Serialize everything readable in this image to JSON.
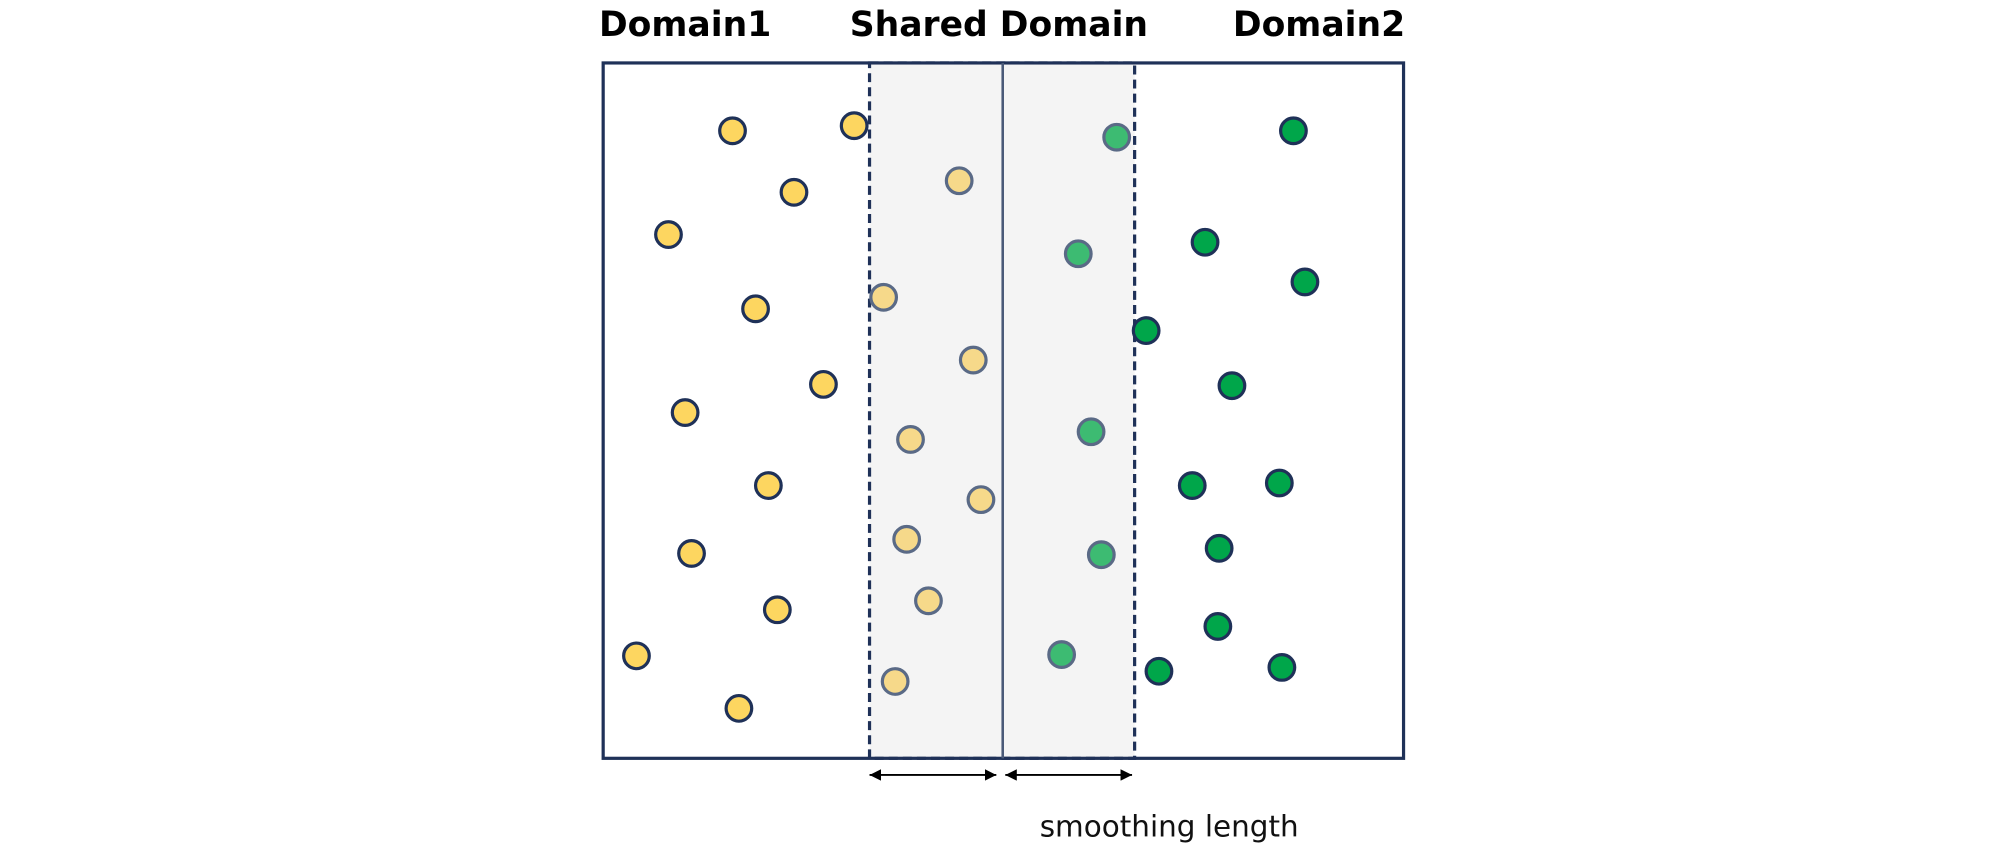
{
  "labels": {
    "domain1": "Domain1",
    "shared": "Shared Domain",
    "domain2": "Domain2",
    "smoothing": "smoothing length"
  },
  "colors": {
    "border": "#1f3158",
    "yellow": "#fdd660",
    "yellow_faded": "#f6d98a",
    "green": "#00a64a",
    "green_faded": "#3dbb72",
    "shared_fill": "#f4f4f4"
  }
}
